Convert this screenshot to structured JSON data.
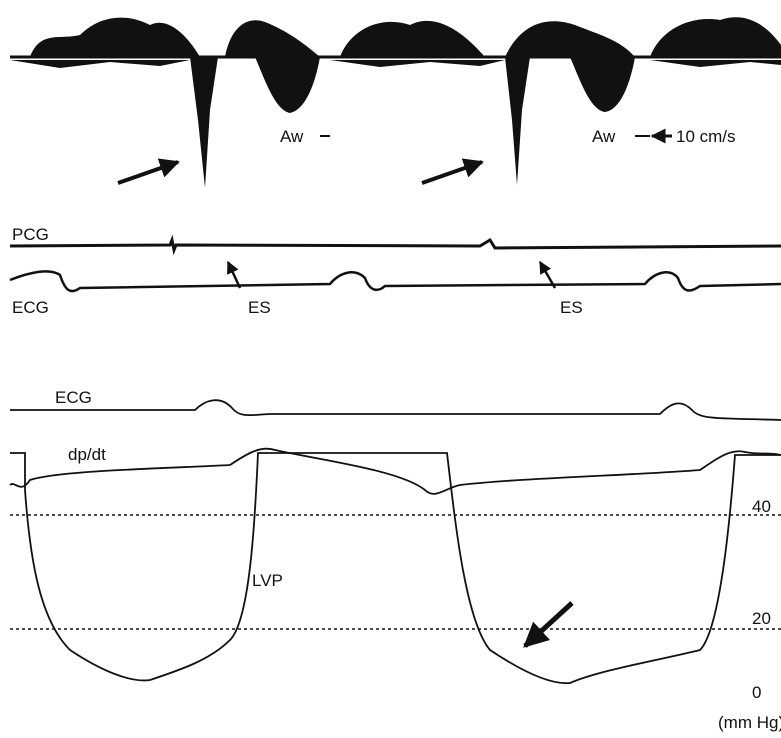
{
  "doppler": {
    "labels": [
      "Aw",
      "Aw"
    ],
    "scale_label": "10 cm/s"
  },
  "phono": {
    "pcg": "PCG",
    "ecg": "ECG",
    "es": [
      "ES",
      "ES"
    ]
  },
  "pressure": {
    "ecg": "ECG",
    "dpdt": "dp/dt",
    "lvp": "LVP",
    "scale": [
      40,
      20,
      0
    ],
    "unit": "(mm Hg)"
  }
}
